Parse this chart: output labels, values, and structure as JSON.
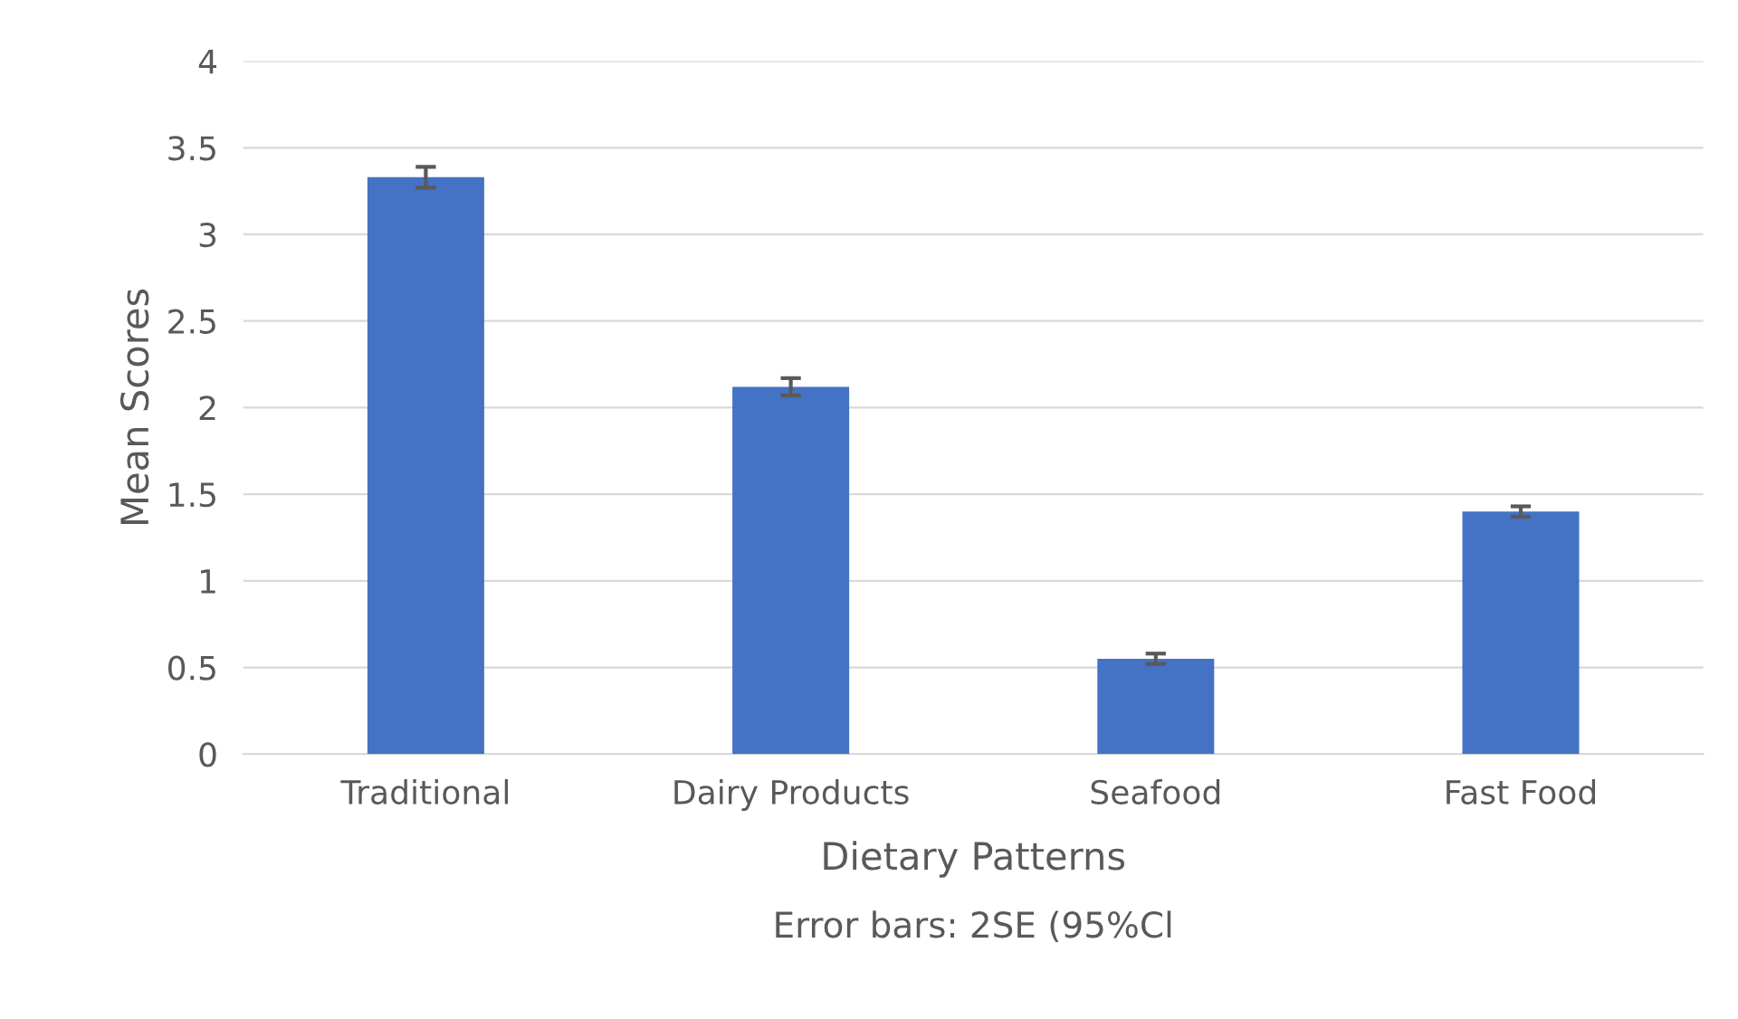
{
  "chart_data": {
    "type": "bar",
    "xlabel": "Dietary Patterns",
    "ylabel": "Mean Scores",
    "annotations": [
      "Error bars: 2SE (95%Cl"
    ],
    "categories": [
      "Traditional",
      "Dairy Products",
      "Seafood",
      "Fast Food"
    ],
    "values": [
      3.33,
      2.12,
      0.55,
      1.4
    ],
    "errors": [
      0.06,
      0.05,
      0.03,
      0.03
    ],
    "color": "#4472c4",
    "ylim": [
      0,
      4
    ],
    "yticks": [
      0,
      0.5,
      1,
      1.5,
      2,
      2.5,
      3,
      3.5,
      4
    ],
    "grid": "y"
  }
}
